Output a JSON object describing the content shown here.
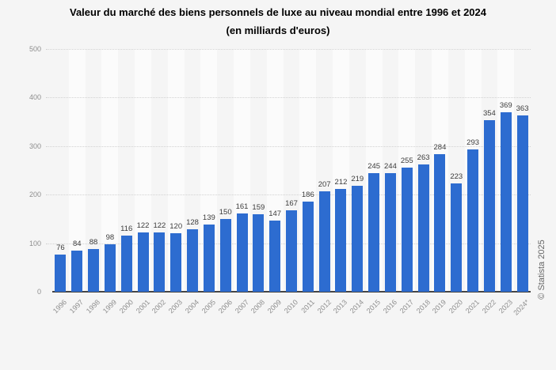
{
  "page": {
    "background": "#f5f5f5"
  },
  "chart_data": {
    "type": "bar",
    "title": "Valeur du marché des biens personnels de luxe au niveau mondial entre 1996 et 2024",
    "subtitle": "(en milliards d'euros)",
    "categories": [
      "1996",
      "1997",
      "1998",
      "1999",
      "2000",
      "2001",
      "2002",
      "2003",
      "2004",
      "2005",
      "2006",
      "2007",
      "2008",
      "2009",
      "2010",
      "2011",
      "2012",
      "2013",
      "2014",
      "2015",
      "2016",
      "2017",
      "2018",
      "2019",
      "2020",
      "2021",
      "2022",
      "2023",
      "2024*"
    ],
    "values": [
      76,
      84,
      88,
      98,
      116,
      122,
      122,
      120,
      128,
      139,
      150,
      161,
      159,
      147,
      167,
      186,
      207,
      212,
      219,
      245,
      244,
      255,
      263,
      284,
      223,
      293,
      354,
      369,
      363
    ],
    "xlabel": "",
    "ylabel": "",
    "ylim": [
      0,
      500
    ],
    "yticks": [
      0,
      100,
      200,
      300,
      400,
      500
    ],
    "grid": "horizontal-dotted",
    "legend": "none",
    "bar_color": "#2d6cd0",
    "band_color_alt": "#fbfbfb",
    "watermark": "© Statista 2025"
  }
}
